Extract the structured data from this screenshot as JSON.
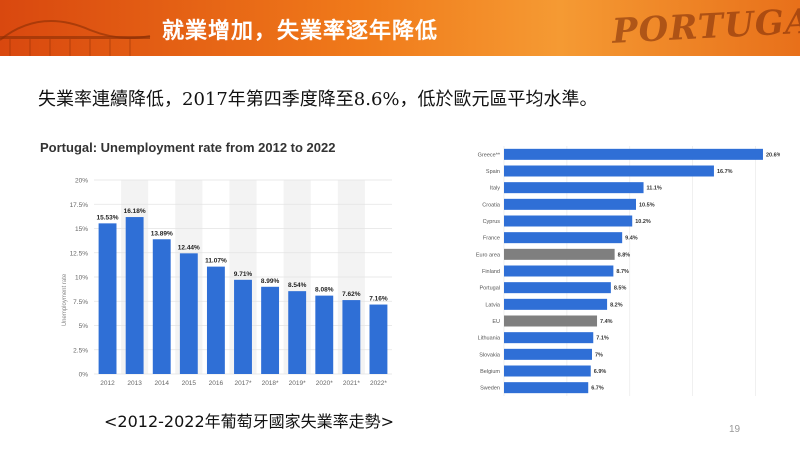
{
  "slide": {
    "title": "就業增加，失業率逐年降低",
    "logo_text": "PORTUGAL",
    "subtitle": "失業率連續降低，2017年第四季度降至8.6%，低於歐元區平均水準。",
    "caption": "<2012-2022年葡萄牙國家失業率走勢>",
    "page_number": "19"
  },
  "colors": {
    "header": "#f07a1a",
    "bar": "#2f6fd6",
    "bar_gray": "#7f7f7f"
  },
  "chart_data": [
    {
      "type": "bar",
      "title": "Portugal: Unemployment rate from 2012 to 2022",
      "ylabel": "Unemployment rate",
      "xlabel": "",
      "ylim": [
        0,
        20
      ],
      "yticks": [
        "0%",
        "2.5%",
        "5%",
        "7.5%",
        "10%",
        "12.5%",
        "15%",
        "17.5%",
        "20%"
      ],
      "categories": [
        "2012",
        "2013",
        "2014",
        "2015",
        "2016",
        "2017*",
        "2018*",
        "2019*",
        "2020*",
        "2021*",
        "2022*"
      ],
      "values": [
        15.53,
        16.18,
        13.89,
        12.44,
        11.07,
        9.71,
        8.99,
        8.54,
        8.08,
        7.62,
        7.16
      ],
      "labels": [
        "15.53%",
        "16.18%",
        "13.89%",
        "12.44%",
        "11.07%",
        "9.71%",
        "8.99%",
        "8.54%",
        "8.08%",
        "7.62%",
        "7.16%"
      ],
      "grid": true
    },
    {
      "type": "bar",
      "orientation": "horizontal",
      "categories": [
        "Greece**",
        "Spain",
        "Italy",
        "Croatia",
        "Cyprus",
        "France",
        "Euro area",
        "Finland",
        "Portugal",
        "Latvia",
        "EU",
        "Lithuania",
        "Slovakia",
        "Belgium",
        "Sweden"
      ],
      "values": [
        20.6,
        16.7,
        11.1,
        10.5,
        10.2,
        9.4,
        8.8,
        8.7,
        8.5,
        8.2,
        7.4,
        7.1,
        7,
        6.9,
        6.7
      ],
      "labels": [
        "20.6%",
        "16.7%",
        "11.1%",
        "10.5%",
        "10.2%",
        "9.4%",
        "8.8%",
        "8.7%",
        "8.5%",
        "8.2%",
        "7.4%",
        "7.1%",
        "7%",
        "6.9%",
        "6.7%"
      ],
      "highlight": [
        "Euro area",
        "EU"
      ],
      "grid": true
    }
  ]
}
